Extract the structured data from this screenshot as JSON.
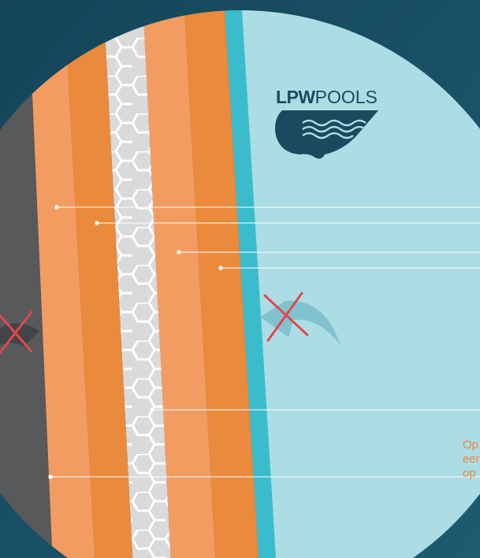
{
  "logo": {
    "brand_bold": "LPW",
    "brand_light": "POOLS"
  },
  "caption": {
    "lines": [
      "Op",
      "eer",
      "op"
    ]
  },
  "colors": {
    "background": "#1a4a5e",
    "water": "#acdde4",
    "membrane": "#3bbccd",
    "orange_light": "#f39c62",
    "orange_dark": "#e98a3c",
    "concrete": "#d9dadb",
    "soil": "#58595b",
    "cross": "#e2474f"
  },
  "icons": [
    "cross-icon",
    "curved-arrow-icon",
    "wave-icon"
  ]
}
